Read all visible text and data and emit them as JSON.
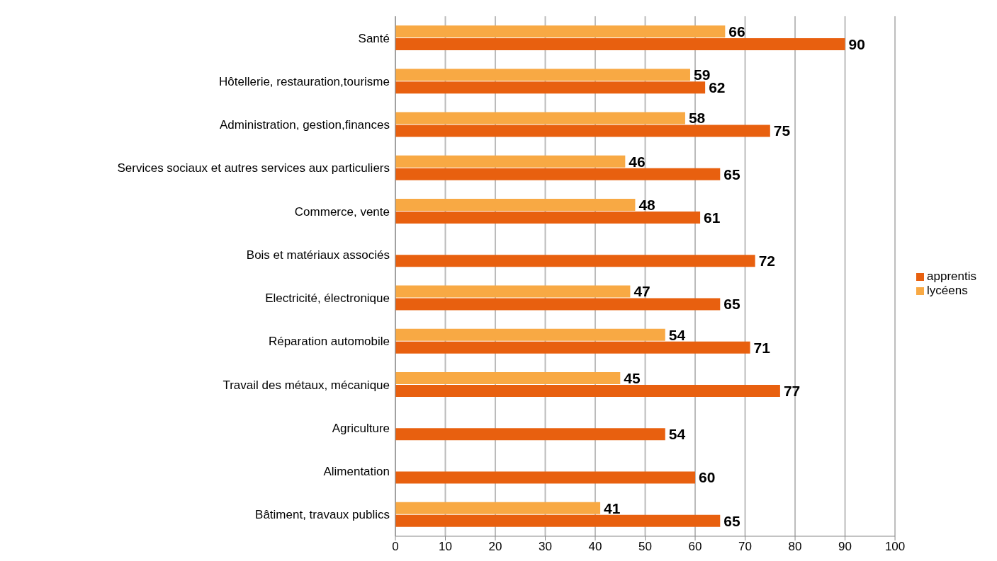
{
  "chart_data": {
    "type": "bar",
    "orientation": "horizontal",
    "categories": [
      "Santé",
      "Hôtellerie, restauration,tourisme",
      "Administration, gestion,finances",
      "Services sociaux et autres services aux particuliers",
      "Commerce, vente",
      "Bois et matériaux associés",
      "Electricité, électronique",
      "Réparation automobile",
      "Travail des métaux, mécanique",
      "Agriculture",
      "Alimentation",
      "Bâtiment, travaux publics"
    ],
    "series": [
      {
        "name": "lycéens",
        "color": "#f8a944",
        "values": [
          66,
          59,
          58,
          46,
          48,
          null,
          47,
          54,
          45,
          null,
          null,
          41
        ]
      },
      {
        "name": "apprentis",
        "color": "#e8600f",
        "values": [
          90,
          62,
          75,
          65,
          61,
          72,
          65,
          71,
          77,
          54,
          60,
          65
        ]
      }
    ],
    "xlim": [
      0,
      100
    ],
    "xticks": [
      0,
      10,
      20,
      30,
      40,
      50,
      60,
      70,
      80,
      90,
      100
    ],
    "grid": "x",
    "legend": "right",
    "data_labels": true
  }
}
